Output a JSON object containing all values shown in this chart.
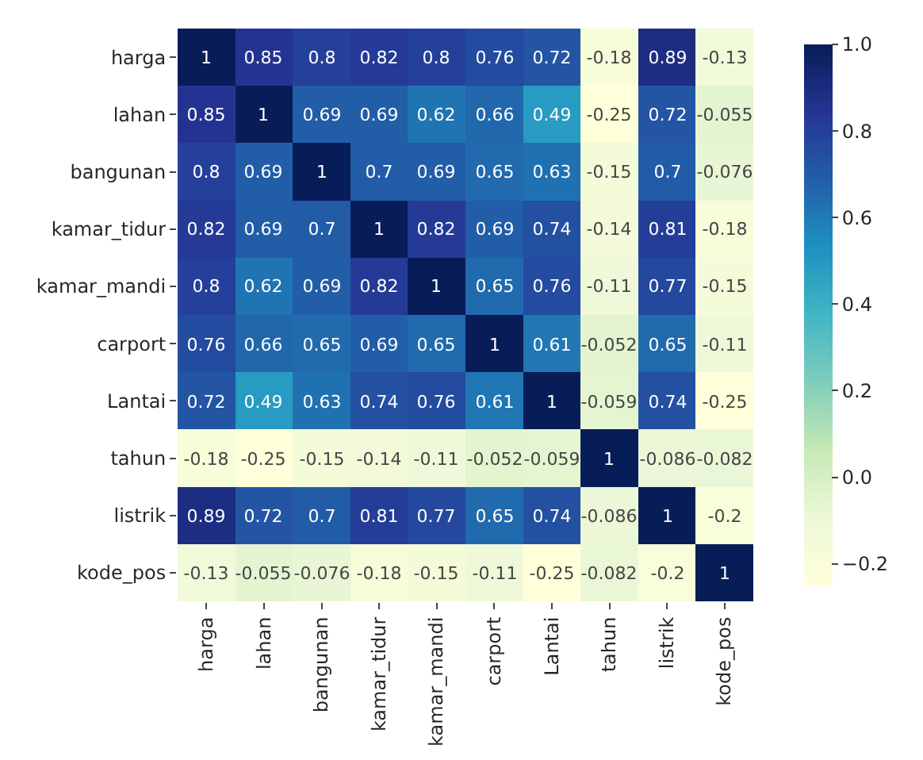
{
  "chart_data": {
    "type": "heatmap",
    "categories": [
      "harga",
      "lahan",
      "bangunan",
      "kamar_tidur",
      "kamar_mandi",
      "carport",
      "Lantai",
      "tahun",
      "listrik",
      "kode_pos"
    ],
    "y_categories": [
      "harga",
      "lahan",
      "bangunan",
      "kamar_tidur",
      "kamar_mandi",
      "carport",
      "Lantai",
      "tahun",
      "listrik",
      "kode_pos"
    ],
    "cells": [
      [
        1,
        0.85,
        0.8,
        0.82,
        0.8,
        0.76,
        0.72,
        -0.18,
        0.89,
        -0.13
      ],
      [
        0.85,
        1,
        0.69,
        0.69,
        0.62,
        0.66,
        0.49,
        -0.25,
        0.72,
        -0.055
      ],
      [
        0.8,
        0.69,
        1,
        0.7,
        0.69,
        0.65,
        0.63,
        -0.15,
        0.7,
        -0.076
      ],
      [
        0.82,
        0.69,
        0.7,
        1,
        0.82,
        0.69,
        0.74,
        -0.14,
        0.81,
        -0.18
      ],
      [
        0.8,
        0.62,
        0.69,
        0.82,
        1,
        0.65,
        0.76,
        -0.11,
        0.77,
        -0.15
      ],
      [
        0.76,
        0.66,
        0.65,
        0.69,
        0.65,
        1,
        0.61,
        -0.052,
        0.65,
        -0.11
      ],
      [
        0.72,
        0.49,
        0.63,
        0.74,
        0.76,
        0.61,
        1,
        -0.059,
        0.74,
        -0.25
      ],
      [
        -0.18,
        -0.25,
        -0.15,
        -0.14,
        -0.11,
        -0.052,
        -0.059,
        1,
        -0.086,
        -0.082
      ],
      [
        0.89,
        0.72,
        0.7,
        0.81,
        0.77,
        0.65,
        0.74,
        -0.086,
        1,
        -0.2
      ],
      [
        -0.13,
        -0.055,
        -0.076,
        -0.18,
        -0.15,
        -0.11,
        -0.25,
        -0.082,
        -0.2,
        1
      ]
    ],
    "data_labels": true,
    "clim": [
      -0.25,
      1
    ],
    "cticks": [
      {
        "value": 1,
        "label": "1.0"
      },
      {
        "value": 0.8,
        "label": "0.8"
      },
      {
        "value": 0.6,
        "label": "0.6"
      },
      {
        "value": 0.4,
        "label": "0.4"
      },
      {
        "value": 0.2,
        "label": "0.2"
      },
      {
        "value": 0,
        "label": "0.0"
      },
      {
        "value": -0.2,
        "label": "−0.2"
      }
    ]
  }
}
